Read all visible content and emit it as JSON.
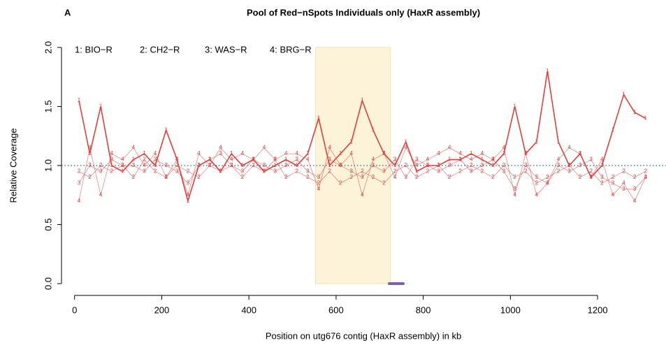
{
  "chart_data": {
    "type": "line",
    "panel_label": "A",
    "title": "Pool of Red−nSpots Individuals only (HaxR assembly)",
    "x_label": "Position on utg676 contig (HaxR assembly) in kb",
    "y_label": "Relative Coverage",
    "x": [
      10,
      35,
      60,
      85,
      110,
      135,
      160,
      185,
      210,
      235,
      260,
      285,
      310,
      335,
      360,
      385,
      410,
      435,
      460,
      485,
      510,
      535,
      560,
      585,
      610,
      635,
      660,
      685,
      710,
      735,
      760,
      785,
      810,
      835,
      860,
      885,
      910,
      935,
      960,
      985,
      1010,
      1035,
      1060,
      1085,
      1110,
      1135,
      1160,
      1185,
      1210,
      1235,
      1260,
      1285,
      1310
    ],
    "series": [
      {
        "name": "1: BIO−R",
        "marker": "1",
        "color": "#e0403a",
        "values": [
          1.55,
          1.1,
          1.5,
          1.0,
          0.95,
          1.05,
          1.1,
          1.0,
          1.3,
          1.05,
          0.7,
          1.0,
          1.05,
          0.95,
          1.1,
          1.0,
          1.05,
          0.95,
          1.0,
          1.05,
          1.0,
          1.1,
          1.4,
          1.0,
          1.1,
          1.2,
          1.55,
          1.3,
          1.1,
          1.0,
          1.2,
          0.95,
          1.0,
          1.0,
          1.05,
          1.05,
          1.1,
          1.05,
          1.0,
          1.1,
          1.5,
          1.1,
          1.2,
          1.8,
          1.2,
          1.0,
          1.1,
          0.9,
          1.0,
          1.3,
          1.6,
          1.45,
          1.4
        ]
      },
      {
        "name": "2: CH2−R",
        "marker": "2",
        "color": "#e0403a",
        "values": [
          0.95,
          0.9,
          1.0,
          0.95,
          1.0,
          0.9,
          1.05,
          0.95,
          0.9,
          1.0,
          0.95,
          0.9,
          1.0,
          0.95,
          1.0,
          0.9,
          1.0,
          0.95,
          1.05,
          0.9,
          0.95,
          0.9,
          0.85,
          0.95,
          0.85,
          0.9,
          0.95,
          0.9,
          0.85,
          0.95,
          1.0,
          0.9,
          0.95,
          1.0,
          0.9,
          0.95,
          1.0,
          0.95,
          0.9,
          1.0,
          0.9,
          0.95,
          0.85,
          0.9,
          0.95,
          1.0,
          0.9,
          0.95,
          0.85,
          0.9,
          0.95,
          0.9,
          0.95
        ]
      },
      {
        "name": "3: WAS−R",
        "marker": "3",
        "color": "#e0403a",
        "values": [
          0.85,
          1.0,
          0.95,
          1.05,
          1.0,
          1.0,
          0.95,
          1.05,
          1.0,
          0.95,
          0.85,
          1.0,
          1.05,
          1.1,
          1.0,
          0.95,
          1.05,
          1.0,
          0.95,
          1.0,
          1.05,
          0.95,
          0.9,
          1.05,
          1.0,
          0.95,
          0.9,
          1.0,
          0.95,
          1.05,
          0.9,
          1.05,
          1.0,
          0.95,
          1.0,
          1.05,
          0.95,
          1.0,
          1.05,
          0.95,
          0.8,
          1.0,
          0.9,
          0.85,
          1.0,
          0.95,
          1.0,
          1.05,
          0.9,
          0.85,
          0.8,
          0.8,
          0.9
        ]
      },
      {
        "name": "4: BRG−R",
        "marker": "4",
        "color": "#e0403a",
        "values": [
          0.7,
          1.15,
          0.75,
          1.1,
          1.05,
          1.15,
          1.0,
          1.1,
          0.9,
          1.05,
          0.75,
          1.1,
          1.0,
          1.15,
          1.05,
          1.1,
          1.05,
          1.15,
          1.05,
          1.1,
          1.1,
          1.05,
          0.8,
          1.15,
          1.0,
          1.1,
          0.75,
          1.05,
          1.1,
          0.9,
          1.15,
          1.0,
          1.05,
          1.1,
          1.15,
          1.1,
          1.05,
          1.1,
          1.05,
          1.15,
          0.75,
          1.1,
          0.75,
          0.85,
          1.05,
          1.15,
          1.1,
          0.9,
          1.05,
          0.75,
          0.85,
          0.7,
          0.9
        ]
      }
    ],
    "highlight": [
      553,
      725
    ],
    "highlight_color": "#fdf3d8",
    "segment": [
      722,
      754
    ],
    "segment_y": 0,
    "segment_color": "#7b5bb5",
    "hline": 1,
    "hline_color": "#2a5d8a",
    "xlim": [
      -30,
      1357
    ],
    "ylim": [
      -0.1,
      2.1
    ],
    "xticks": [
      0,
      200,
      400,
      600,
      800,
      1000,
      1200
    ],
    "yticks": [
      {
        "value": 0,
        "label": "0.0"
      },
      {
        "value": 0.5,
        "label": "0.5"
      },
      {
        "value": 1,
        "label": "1.0"
      },
      {
        "value": 1.5,
        "label": "1.5"
      },
      {
        "value": 2,
        "label": "2.0"
      }
    ]
  }
}
